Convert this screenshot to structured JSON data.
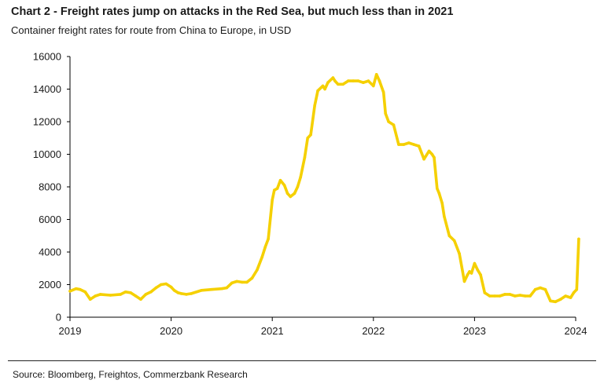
{
  "header": {
    "title": "Chart 2 - Freight rates jump on attacks in the Red Sea, but much less than in 2021",
    "subtitle": "Container freight rates for route from China to Europe, in USD"
  },
  "footer": {
    "source": "Source: Bloomberg, Freightos, Commerzbank Research"
  },
  "chart_data": {
    "type": "line",
    "title": "Chart 2 - Freight rates jump on attacks in the Red Sea, but much less than in 2021",
    "subtitle": "Container freight rates for route from China to Europe, in USD",
    "xlabel": "",
    "ylabel": "",
    "xlim": [
      2019,
      2024
    ],
    "ylim": [
      0,
      16000
    ],
    "x_ticks": [
      2019,
      2020,
      2021,
      2022,
      2023,
      2024
    ],
    "x_tick_labels": [
      "2019",
      "2020",
      "2021",
      "2022",
      "2023",
      "2024"
    ],
    "y_ticks": [
      0,
      2000,
      4000,
      6000,
      8000,
      10000,
      12000,
      14000,
      16000
    ],
    "y_tick_labels": [
      "0",
      "2000",
      "4000",
      "6000",
      "8000",
      "10000",
      "12000",
      "14000",
      "16000"
    ],
    "grid": false,
    "colors": {
      "line": "#f5d000",
      "axis": "#000000"
    },
    "series": [
      {
        "x": [
          2019.0,
          2019.06,
          2019.1,
          2019.15,
          2019.2,
          2019.25,
          2019.3,
          2019.4,
          2019.5,
          2019.55,
          2019.6,
          2019.65,
          2019.7,
          2019.75,
          2019.8,
          2019.85,
          2019.9,
          2019.95,
          2020.0,
          2020.03,
          2020.07,
          2020.1,
          2020.15,
          2020.2,
          2020.3,
          2020.4,
          2020.5,
          2020.55,
          2020.6,
          2020.65,
          2020.7,
          2020.75,
          2020.8,
          2020.85,
          2020.9,
          2020.93,
          2020.96,
          2021.0,
          2021.02,
          2021.05,
          2021.08,
          2021.12,
          2021.15,
          2021.18,
          2021.22,
          2021.25,
          2021.28,
          2021.32,
          2021.35,
          2021.38,
          2021.42,
          2021.45,
          2021.5,
          2021.52,
          2021.55,
          2021.6,
          2021.62,
          2021.65,
          2021.7,
          2021.75,
          2021.8,
          2021.85,
          2021.9,
          2021.95,
          2022.0,
          2022.03,
          2022.06,
          2022.1,
          2022.12,
          2022.15,
          2022.2,
          2022.25,
          2022.3,
          2022.35,
          2022.4,
          2022.45,
          2022.5,
          2022.55,
          2022.58,
          2022.6,
          2022.63,
          2022.65,
          2022.68,
          2022.7,
          2022.75,
          2022.8,
          2022.85,
          2022.9,
          2022.93,
          2022.95,
          2022.97,
          2023.0,
          2023.03,
          2023.06,
          2023.1,
          2023.15,
          2023.2,
          2023.25,
          2023.3,
          2023.35,
          2023.4,
          2023.45,
          2023.5,
          2023.55,
          2023.6,
          2023.65,
          2023.7,
          2023.75,
          2023.8,
          2023.85,
          2023.9,
          2023.95,
          2023.98,
          2024.01,
          2024.03
        ],
        "values": [
          1600,
          1750,
          1700,
          1550,
          1100,
          1300,
          1400,
          1350,
          1400,
          1550,
          1500,
          1300,
          1100,
          1400,
          1550,
          1800,
          2000,
          2050,
          1850,
          1650,
          1500,
          1450,
          1400,
          1450,
          1650,
          1700,
          1750,
          1800,
          2100,
          2200,
          2150,
          2150,
          2400,
          2900,
          3700,
          4300,
          4800,
          7200,
          7800,
          7900,
          8400,
          8100,
          7600,
          7400,
          7600,
          8000,
          8600,
          9800,
          11000,
          11200,
          13000,
          13900,
          14200,
          14000,
          14400,
          14700,
          14500,
          14300,
          14300,
          14500,
          14500,
          14500,
          14400,
          14500,
          14200,
          14900,
          14500,
          13800,
          12500,
          12000,
          11800,
          10600,
          10600,
          10700,
          10600,
          10500,
          9700,
          10200,
          10000,
          9800,
          7900,
          7600,
          7000,
          6200,
          5000,
          4700,
          3900,
          2200,
          2600,
          2800,
          2700,
          3300,
          2900,
          2600,
          1500,
          1300,
          1300,
          1300,
          1400,
          1400,
          1300,
          1350,
          1300,
          1300,
          1700,
          1800,
          1700,
          1000,
          950,
          1100,
          1300,
          1200,
          1500,
          1700,
          4800
        ]
      }
    ]
  }
}
